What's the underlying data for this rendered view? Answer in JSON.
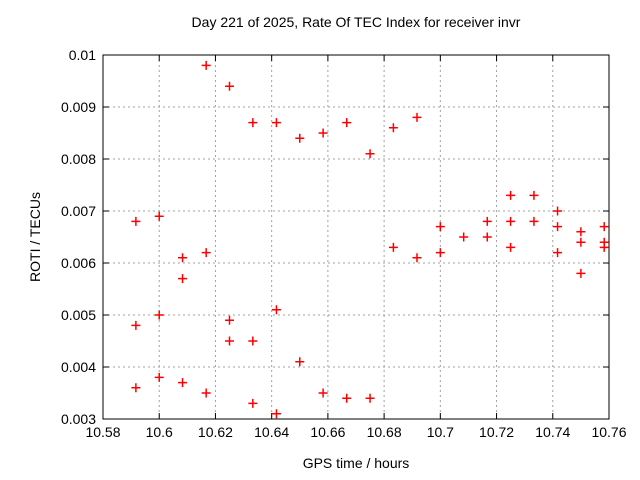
{
  "page": {
    "background": "#ffffff"
  },
  "chart_data": {
    "type": "scatter",
    "title": "Day 221 of 2025, Rate Of TEC Index for receiver invr",
    "xlabel": "GPS time / hours",
    "ylabel": "ROTI / TECUs",
    "xlim": [
      10.58,
      10.76
    ],
    "ylim": [
      0.003,
      0.01
    ],
    "xticks": {
      "values": [
        10.58,
        10.6,
        10.62,
        10.64,
        10.66,
        10.68,
        10.7,
        10.72,
        10.74,
        10.76
      ],
      "labels": [
        "10.58",
        "10.6",
        "10.62",
        "10.64",
        "10.66",
        "10.68",
        "10.7",
        "10.72",
        "10.74",
        "10.76"
      ]
    },
    "yticks": {
      "values": [
        0.003,
        0.004,
        0.005,
        0.006,
        0.007,
        0.008,
        0.009,
        0.01
      ],
      "labels": [
        "0.003",
        "0.004",
        "0.005",
        "0.006",
        "0.007",
        "0.008",
        "0.009",
        "0.01"
      ]
    },
    "grid": true,
    "legend": "none",
    "marker": {
      "symbol": "plus",
      "color": "#ff0000"
    },
    "grid_color": "#a0a0a0",
    "axis_color": "#000000",
    "points": [
      [
        10.5917,
        0.0068
      ],
      [
        10.5917,
        0.0048
      ],
      [
        10.5917,
        0.0036
      ],
      [
        10.6,
        0.0069
      ],
      [
        10.6,
        0.005
      ],
      [
        10.6,
        0.0038
      ],
      [
        10.6083,
        0.0061
      ],
      [
        10.6083,
        0.0057
      ],
      [
        10.6083,
        0.0037
      ],
      [
        10.6167,
        0.0098
      ],
      [
        10.6167,
        0.0062
      ],
      [
        10.6167,
        0.0035
      ],
      [
        10.625,
        0.0094
      ],
      [
        10.625,
        0.0049
      ],
      [
        10.625,
        0.0045
      ],
      [
        10.6333,
        0.0087
      ],
      [
        10.6333,
        0.0045
      ],
      [
        10.6333,
        0.0033
      ],
      [
        10.6417,
        0.0087
      ],
      [
        10.6417,
        0.0051
      ],
      [
        10.6417,
        0.0031
      ],
      [
        10.65,
        0.0084
      ],
      [
        10.65,
        0.0041
      ],
      [
        10.6583,
        0.0085
      ],
      [
        10.6583,
        0.0035
      ],
      [
        10.6667,
        0.0087
      ],
      [
        10.6667,
        0.0034
      ],
      [
        10.675,
        0.0081
      ],
      [
        10.675,
        0.0034
      ],
      [
        10.6833,
        0.0086
      ],
      [
        10.6833,
        0.0063
      ],
      [
        10.6917,
        0.0088
      ],
      [
        10.6917,
        0.0061
      ],
      [
        10.7,
        0.0067
      ],
      [
        10.7,
        0.0062
      ],
      [
        10.7083,
        0.0065
      ],
      [
        10.7167,
        0.0068
      ],
      [
        10.7167,
        0.0065
      ],
      [
        10.725,
        0.0073
      ],
      [
        10.725,
        0.0068
      ],
      [
        10.725,
        0.0063
      ],
      [
        10.7333,
        0.0073
      ],
      [
        10.7333,
        0.0068
      ],
      [
        10.7417,
        0.007
      ],
      [
        10.7417,
        0.0067
      ],
      [
        10.7417,
        0.0062
      ],
      [
        10.75,
        0.0066
      ],
      [
        10.75,
        0.0064
      ],
      [
        10.75,
        0.0058
      ],
      [
        10.7583,
        0.0067
      ],
      [
        10.7583,
        0.0064
      ],
      [
        10.7583,
        0.0063
      ]
    ]
  }
}
